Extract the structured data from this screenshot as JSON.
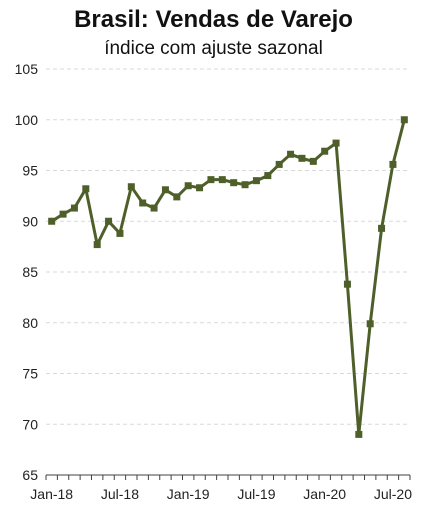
{
  "chart_data": {
    "type": "line",
    "title": "Brasil: Vendas de Varejo",
    "subtitle": "índice com ajuste sazonal",
    "xlabel": "",
    "ylabel": "",
    "ylim": [
      65,
      105
    ],
    "yticks": [
      65,
      70,
      75,
      80,
      85,
      90,
      95,
      100,
      105
    ],
    "xtick_labels": [
      "Jan-18",
      "Jul-18",
      "Jan-19",
      "Jul-19",
      "Jan-20",
      "Jul-20"
    ],
    "grid": "horizontal dashed",
    "marker": "square",
    "colors": {
      "series": "#4e5f2a",
      "grid": "#d9d9d9",
      "axis": "#404040"
    },
    "x": [
      "Jan-18",
      "Feb-18",
      "Mar-18",
      "Apr-18",
      "May-18",
      "Jun-18",
      "Jul-18",
      "Aug-18",
      "Sep-18",
      "Oct-18",
      "Nov-18",
      "Dec-18",
      "Jan-19",
      "Feb-19",
      "Mar-19",
      "Apr-19",
      "May-19",
      "Jun-19",
      "Jul-19",
      "Aug-19",
      "Sep-19",
      "Oct-19",
      "Nov-19",
      "Dec-19",
      "Jan-20",
      "Feb-20",
      "Mar-20",
      "Apr-20",
      "May-20",
      "Jun-20",
      "Jul-20",
      "Aug-20"
    ],
    "series": [
      {
        "values": [
          90.0,
          90.7,
          91.3,
          93.2,
          87.7,
          90.0,
          88.8,
          93.4,
          91.8,
          91.3,
          93.1,
          92.4,
          93.5,
          93.3,
          94.1,
          94.1,
          93.8,
          93.6,
          94.0,
          94.5,
          95.6,
          96.6,
          96.2,
          95.9,
          96.9,
          97.7,
          83.8,
          69.0,
          79.9,
          89.3,
          95.6,
          100.0
        ]
      }
    ]
  }
}
